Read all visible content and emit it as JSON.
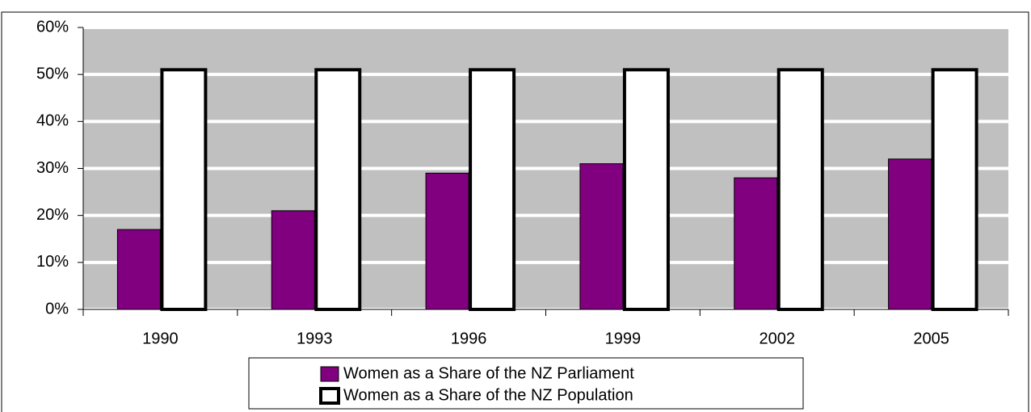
{
  "chart_data": {
    "type": "bar",
    "categories": [
      "1990",
      "1993",
      "1996",
      "1999",
      "2002",
      "2005"
    ],
    "series": [
      {
        "name": "Women as a Share of the NZ Parliament",
        "color": "#800080",
        "values": [
          17,
          21,
          29,
          31,
          28,
          32
        ]
      },
      {
        "name": "Women as a Share of the NZ Population",
        "color": "#ffffff",
        "values": [
          51,
          51,
          51,
          51,
          51,
          51
        ]
      }
    ],
    "ylim": [
      0,
      60
    ],
    "yticks": [
      {
        "value": 0,
        "label": "0%"
      },
      {
        "value": 10,
        "label": "10%"
      },
      {
        "value": 20,
        "label": "20%"
      },
      {
        "value": 30,
        "label": "30%"
      },
      {
        "value": 40,
        "label": "40%"
      },
      {
        "value": 50,
        "label": "50%"
      },
      {
        "value": 60,
        "label": "60%"
      }
    ],
    "grid": true,
    "legend": "bottom"
  }
}
